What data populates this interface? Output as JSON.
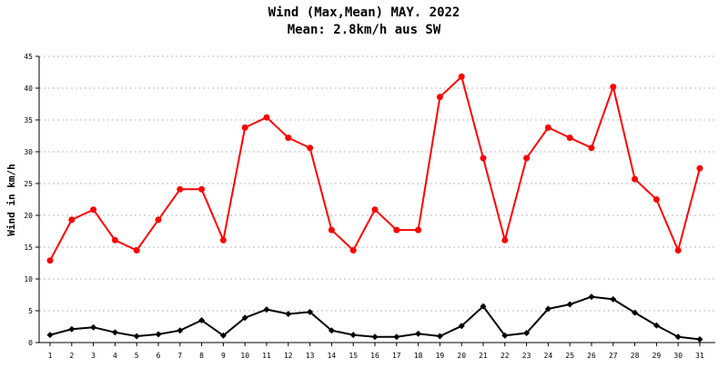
{
  "chart_data": {
    "type": "line",
    "title": "Wind (Max,Mean) MAY. 2022",
    "subtitle": "Mean: 2.8km/h aus SW",
    "xlabel": "",
    "ylabel": "Wind in km/h",
    "ylim": [
      0,
      45
    ],
    "yticks": [
      0,
      5,
      10,
      15,
      20,
      25,
      30,
      35,
      40,
      45
    ],
    "grid": true,
    "categories": [
      "1",
      "2",
      "3",
      "4",
      "5",
      "6",
      "7",
      "8",
      "9",
      "10",
      "11",
      "12",
      "13",
      "14",
      "15",
      "16",
      "17",
      "18",
      "19",
      "20",
      "21",
      "22",
      "23",
      "24",
      "25",
      "26",
      "27",
      "28",
      "29",
      "30",
      "31"
    ],
    "series": [
      {
        "color": "#ff0000",
        "marker": "circle",
        "values": [
          12.9,
          19.3,
          20.9,
          16.1,
          14.5,
          19.3,
          24.1,
          24.1,
          16.1,
          33.8,
          35.4,
          32.2,
          30.6,
          17.7,
          14.5,
          20.9,
          17.7,
          17.7,
          38.6,
          41.8,
          29.0,
          16.1,
          29.0,
          33.8,
          32.2,
          30.6,
          40.2,
          25.7,
          22.5,
          14.5,
          27.4
        ]
      },
      {
        "color": "#000000",
        "marker": "diamond",
        "values": [
          1.2,
          2.1,
          2.4,
          1.6,
          1.0,
          1.3,
          1.9,
          3.5,
          1.1,
          3.9,
          5.2,
          4.5,
          4.8,
          1.9,
          1.2,
          0.9,
          0.9,
          1.4,
          1.0,
          2.6,
          5.7,
          1.1,
          1.5,
          5.3,
          6.0,
          7.2,
          6.8,
          4.7,
          2.7,
          0.9,
          0.5
        ]
      }
    ]
  }
}
